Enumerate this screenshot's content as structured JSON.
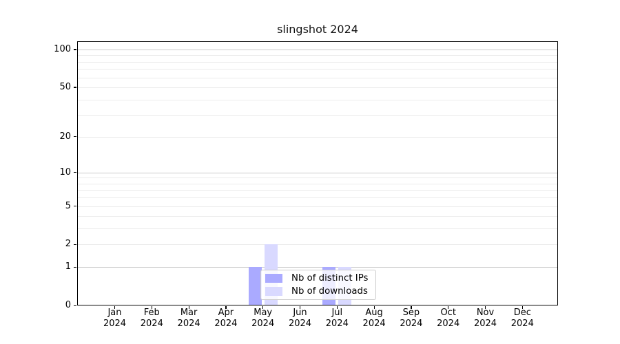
{
  "chart_data": {
    "type": "bar",
    "title": "slingshot 2024",
    "x_months": [
      "Jan",
      "Feb",
      "Mar",
      "Apr",
      "May",
      "Jun",
      "Jul",
      "Aug",
      "Sep",
      "Oct",
      "Nov",
      "Dec"
    ],
    "x_year": "2024",
    "series": [
      {
        "name": "Nb of distinct IPs",
        "color": "#aaaaff",
        "values": [
          0,
          0,
          0,
          0,
          1,
          0,
          1,
          0,
          0,
          0,
          0,
          0
        ]
      },
      {
        "name": "Nb of downloads",
        "color": "#d9d9ff",
        "values": [
          0,
          0,
          0,
          0,
          2,
          0,
          1,
          0,
          0,
          0,
          0,
          0
        ]
      }
    ],
    "yscale": "log1p",
    "ylim": [
      0,
      116
    ],
    "y_ticks": [
      0,
      1,
      2,
      5,
      10,
      20,
      50,
      100
    ],
    "y_decade_gridlines": [
      1,
      10,
      100
    ],
    "y_minor_gridlines": [
      2,
      3,
      4,
      5,
      6,
      7,
      8,
      9,
      20,
      30,
      40,
      50,
      60,
      70,
      80,
      90
    ],
    "grid": "both",
    "legend_position": "inside lower center"
  },
  "colors": {
    "spine": "#000000",
    "grid_major": "#c9c9c9",
    "grid_minor": "#ebebeb",
    "legend_border": "#cccccc",
    "legend_bg": "rgba(255,255,255,0.8)"
  }
}
